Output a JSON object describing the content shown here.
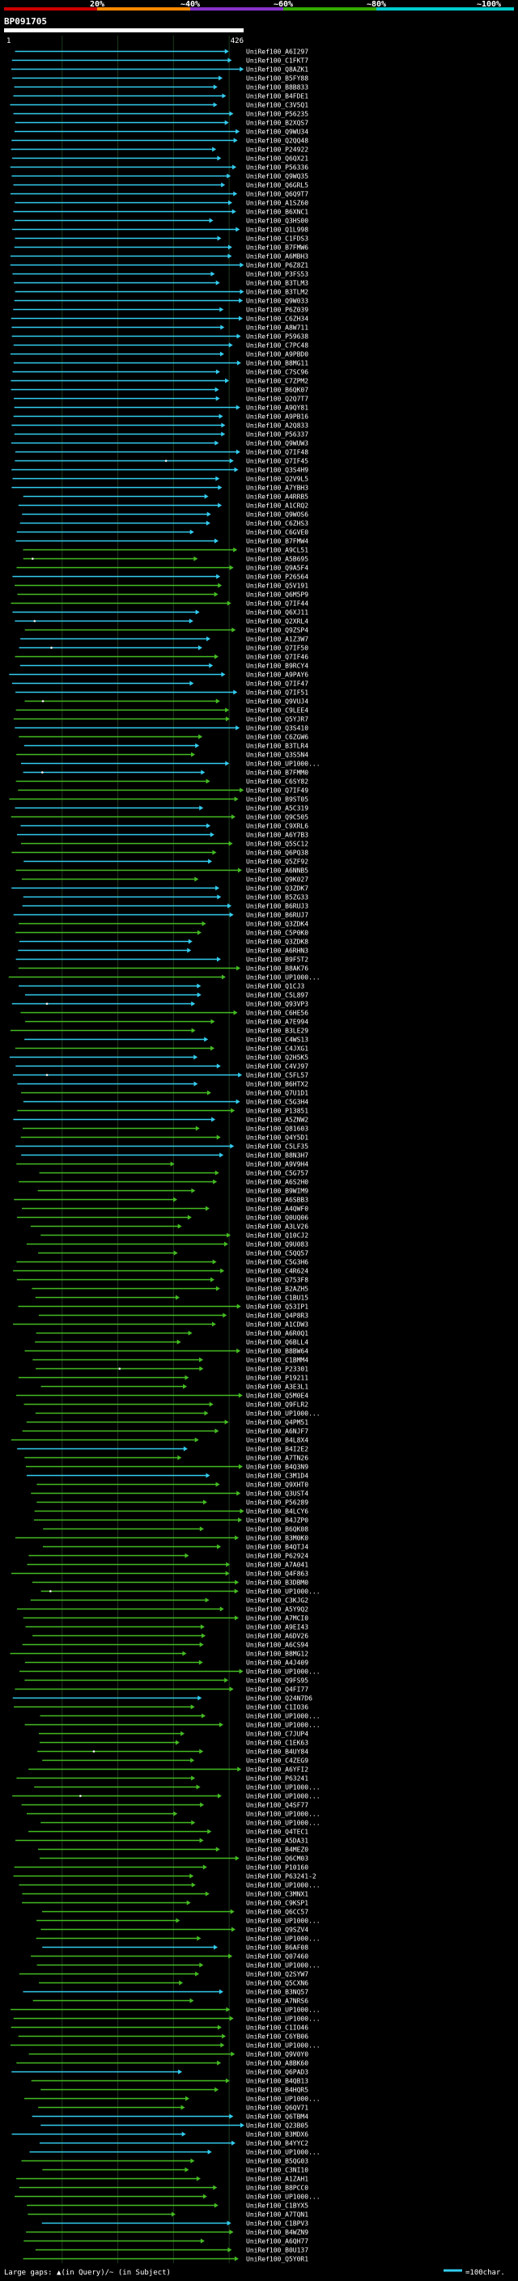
{
  "legend": {
    "pct_labels": [
      "20%",
      "~40%",
      "~60%",
      "~80%",
      "~100%"
    ],
    "segment_colors": [
      "#cc0000",
      "#ff8800",
      "#8833cc",
      "#33aa00",
      "#00cccc"
    ],
    "footer_left": "Large gaps: ▲(in Query)/~ (in Subject)",
    "footer_right": "=100char."
  },
  "chart_data": {
    "type": "alignment-map",
    "title": "BP091705",
    "query_start": 1,
    "query_end": 426,
    "query_start_label": "1",
    "query_end_label": "426",
    "tick_every": 100,
    "identity_colors": {
      "hi": "#33ccee",
      "lo": "#44bb22"
    },
    "gap_colors": {
      "query": "#ffffff",
      "subject": "#bbbbbb"
    },
    "hit_labels": [
      "UniRef100_A6I297",
      "UniRef100_C1FKT7",
      "UniRef100_Q8AZK1",
      "UniRef100_B5FY88",
      "UniRef100_B8B833",
      "UniRef100_B4FDE1",
      "UniRef100_C3V5Q1",
      "UniRef100_P56235",
      "UniRef100_B2XQS7",
      "UniRef100_Q9WU34",
      "UniRef100_Q2QQ48",
      "UniRef100_P24922",
      "UniRef100_Q6QX21",
      "UniRef100_P56336",
      "UniRef100_Q9WQ35",
      "UniRef100_Q6GRL5",
      "UniRef100_Q6Q9T7",
      "UniRef100_A1SZ60",
      "UniRef100_B6XNC1",
      "UniRef100_Q3HS00",
      "UniRef100_Q1L998",
      "UniRef100_C1FDS3",
      "UniRef100_B7FMW6",
      "UniRef100_A6MBH3",
      "UniRef100_P6Z8Z1",
      "UniRef100_P3FS53",
      "UniRef100_B3TLM3",
      "UniRef100_B3TLM2",
      "UniRef100_Q9W033",
      "UniRef100_P6Z039",
      "UniRef100_C6ZH34",
      "UniRef100_A8W711",
      "UniRef100_P59638",
      "UniRef100_C7PC48",
      "UniRef100_A9PBD0",
      "UniRef100_B8MG11",
      "UniRef100_C7SC96",
      "UniRef100_C7ZPM2",
      "UniRef100_B6QK07",
      "UniRef100_Q2Q7T7",
      "UniRef100_A9QY81",
      "UniRef100_A9PB16",
      "UniRef100_A2Q833",
      "UniRef100_P56337",
      "UniRef100_Q9WUW3",
      "UniRef100_Q7IF48",
      "UniRef100_Q7IF45",
      "UniRef100_Q3S4H9",
      "UniRef100_Q2V9L5",
      "UniRef100_A7YBH3",
      "UniRef100_A4RRB5",
      "UniRef100_A1CRQ2",
      "UniRef100_Q9WOS6",
      "UniRef100_C6ZHS3",
      "UniRef100_C6GVE0",
      "UniRef100_B7FMW4",
      "UniRef100_A9CL51",
      "UniRef100_A5B695",
      "UniRef100_Q9A5F4",
      "UniRef100_P26564",
      "UniRef100_Q5V191",
      "UniRef100_Q6M5P9",
      "UniRef100_Q7IF44",
      "UniRef100_Q6XJ11",
      "UniRef100_Q2XRL4",
      "UniRef100_Q9ZSP4",
      "UniRef100_A1Z3W7",
      "UniRef100_Q7IF50",
      "UniRef100_Q7IF46",
      "UniRef100_B9RCY4",
      "UniRef100_A9PAY6",
      "UniRef100_Q7IF47",
      "UniRef100_Q7IF51",
      "UniRef100_Q9VUJ4",
      "UniRef100_C9LEE4",
      "UniRef100_Q5YJR7",
      "UniRef100_Q3S410",
      "UniRef100_C6ZGW6",
      "UniRef100_B3TLR4",
      "UniRef100_Q3S5N4",
      "UniRef100_UP1000...",
      "UniRef100_B7FMM0",
      "UniRef100_C6SY82",
      "UniRef100_Q7IF49",
      "UniRef100_B9ST05",
      "UniRef100_A5C319",
      "UniRef100_Q9C505",
      "UniRef100_C9XRL6",
      "UniRef100_A6Y7B3",
      "UniRef100_Q5SC12",
      "UniRef100_Q6PQ38",
      "UniRef100_Q5ZF92",
      "UniRef100_A6NNB5",
      "UniRef100_Q9K027",
      "UniRef100_Q3ZDK7",
      "UniRef100_B5ZG33",
      "UniRef100_B6RUJ3",
      "UniRef100_B6RUJ7",
      "UniRef100_Q3ZDK4",
      "UniRef100_C5P0K0",
      "UniRef100_Q3ZDK8",
      "UniRef100_A6RHN3",
      "UniRef100_B9F5T2",
      "UniRef100_B8AK76",
      "UniRef100_UP1000...",
      "UniRef100_Q1CJ3",
      "UniRef100_C5L897",
      "UniRef100_Q93VP3",
      "UniRef100_C6HE56",
      "UniRef100_A7E994",
      "UniRef100_B3LE29",
      "UniRef100_C4WS13",
      "UniRef100_C4JXG1",
      "UniRef100_Q2H5K5",
      "UniRef100_C4VJ97",
      "UniRef100_C5FL57",
      "UniRef100_B6HTX2",
      "UniRef100_Q7U1D1",
      "UniRef100_C5G3H4",
      "UniRef100_P13851",
      "UniRef100_A5ZNW2",
      "UniRef100_Q81603",
      "UniRef100_Q4Y5D1",
      "UniRef100_C5LF35",
      "UniRef100_B8N3H7",
      "UniRef100_A9V9H4",
      "UniRef100_C5G757",
      "UniRef100_A6S2H0",
      "UniRef100_B9WIM9",
      "UniRef100_A6SBB3",
      "UniRef100_A4QWF0",
      "UniRef100_Q0UQ06",
      "UniRef100_A3LV26",
      "UniRef100_Q10CJ2",
      "UniRef100_Q9U083",
      "UniRef100_C5QQ57",
      "UniRef100_C5G3H6",
      "UniRef100_C4R624",
      "UniRef100_Q753F8",
      "UniRef100_B2AZH5",
      "UniRef100_C1BU15",
      "UniRef100_Q53IP1",
      "UniRef100_Q4P8R3",
      "UniRef100_A1CDW3",
      "UniRef100_A6R0Q1",
      "UniRef100_Q6BLL4",
      "UniRef100_B8BW64",
      "UniRef100_C1BMM4",
      "UniRef100_P23301",
      "UniRef100_P19211",
      "UniRef100_A3E3L1",
      "UniRef100_Q5M0E4",
      "UniRef100_Q9FLR2",
      "UniRef100_UP1000...",
      "UniRef100_Q4PM51",
      "UniRef100_A6NJF7",
      "UniRef100_B4L8X4",
      "UniRef100_B4I2E2",
      "UniRef100_A7TN26",
      "UniRef100_B4Q3N9",
      "UniRef100_C3M1D4",
      "UniRef100_Q9XHT0",
      "UniRef100_Q3UST4",
      "UniRef100_P56289",
      "UniRef100_B4LCY6",
      "UniRef100_B4JZP0",
      "UniRef100_B6QK08",
      "UniRef100_B3M0K0",
      "UniRef100_B4QTJ4",
      "UniRef100_P62924",
      "UniRef100_A7A041",
      "UniRef100_Q4F863",
      "UniRef100_B3DBM0",
      "UniRef100_UP1000...",
      "UniRef100_C3KJG2",
      "UniRef100_A5Y9Q2",
      "UniRef100_A7MCI0",
      "UniRef100_A9EI43",
      "UniRef100_A6DV26",
      "UniRef100_A6CS94",
      "UniRef100_B8MG12",
      "UniRef100_A4J409",
      "UniRef100_UP1000...",
      "UniRef100_Q9FS95",
      "UniRef100_Q4FI77",
      "UniRef100_Q24N7D6",
      "UniRef100_C1IO36",
      "UniRef100_UP1000...",
      "UniRef100_UP1000...",
      "UniRef100_C7JUP4",
      "UniRef100_C1EK63",
      "UniRef100_B4UY84",
      "UniRef100_C4ZEG9",
      "UniRef100_A6YFI2",
      "UniRef100_P63241",
      "UniRef100_UP1000...",
      "UniRef100_UP1000...",
      "UniRef100_Q4SF77",
      "UniRef100_UP1000...",
      "UniRef100_UP1000...",
      "UniRef100_Q4TEC1",
      "UniRef100_A5DA31",
      "UniRef100_B4MEZ0",
      "UniRef100_Q6CM03",
      "UniRef100_P10160",
      "UniRef100_P63241-2",
      "UniRef100_UP1000...",
      "UniRef100_C3MNX1",
      "UniRef100_C9KSP1",
      "UniRef100_Q6CC57",
      "UniRef100_UP1000...",
      "UniRef100_Q9SZV4",
      "UniRef100_UP1000...",
      "UniRef100_B6AF08",
      "UniRef100_Q07460",
      "UniRef100_UP1000...",
      "UniRef100_Q2SYW7",
      "UniRef100_Q5CXN6",
      "UniRef100_B3NQ57",
      "UniRef100_A7NRS6",
      "UniRef100_UP1000...",
      "UniRef100_UP1000...",
      "UniRef100_C1IO46",
      "UniRef100_C6YB06",
      "UniRef100_UP1000...",
      "UniRef100_Q9V0Y0",
      "UniRef100_A8BK60",
      "UniRef100_Q6PAD3",
      "UniRef100_B4QB13",
      "UniRef100_B4HQR5",
      "UniRef100_UP1000...",
      "UniRef100_Q6QV71",
      "UniRef100_Q6TBM4",
      "UniRef100_Q23B05",
      "UniRef100_B3MDX6",
      "UniRef100_B4YYC2",
      "UniRef100_UP1000...",
      "UniRef100_B5QG03",
      "UniRef100_C3NI10",
      "UniRef100_A1ZAH1",
      "UniRef100_B8PCC0",
      "UniRef100_UP1000...",
      "UniRef100_C1BYX5",
      "UniRef100_A7TQN1",
      "UniRef100_C1BPV3",
      "UniRef100_B4WZN9",
      "UniRef100_A6QH77",
      "UniRef100_B0U137",
      "UniRef100_Q5Y0R1"
    ]
  }
}
